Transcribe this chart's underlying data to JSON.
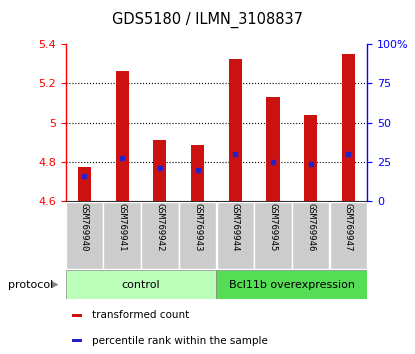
{
  "title": "GDS5180 / ILMN_3108837",
  "categories": [
    "GSM769940",
    "GSM769941",
    "GSM769942",
    "GSM769943",
    "GSM769944",
    "GSM769945",
    "GSM769946",
    "GSM769947"
  ],
  "red_values": [
    4.775,
    5.265,
    4.91,
    4.885,
    5.325,
    5.13,
    5.04,
    5.35
  ],
  "blue_values": [
    4.73,
    4.82,
    4.77,
    4.76,
    4.84,
    4.8,
    4.79,
    4.84
  ],
  "ymin": 4.6,
  "ymax": 5.4,
  "yticks": [
    4.6,
    4.8,
    5.0,
    5.2,
    5.4
  ],
  "ytick_labels": [
    "4.6",
    "4.8",
    "5",
    "5.2",
    "5.4"
  ],
  "right_yticks": [
    0,
    25,
    50,
    75,
    100
  ],
  "right_ytick_labels": [
    "0",
    "25",
    "50",
    "75",
    "100%"
  ],
  "bar_color": "#cc1111",
  "blue_color": "#2222cc",
  "control_color_light": "#bbffbb",
  "control_color_dark": "#55dd55",
  "control_label": "control",
  "overexpr_label": "Bcl11b overexpression",
  "protocol_label": "protocol",
  "legend_red": "transformed count",
  "legend_blue": "percentile rank within the sample",
  "bar_width": 0.35
}
